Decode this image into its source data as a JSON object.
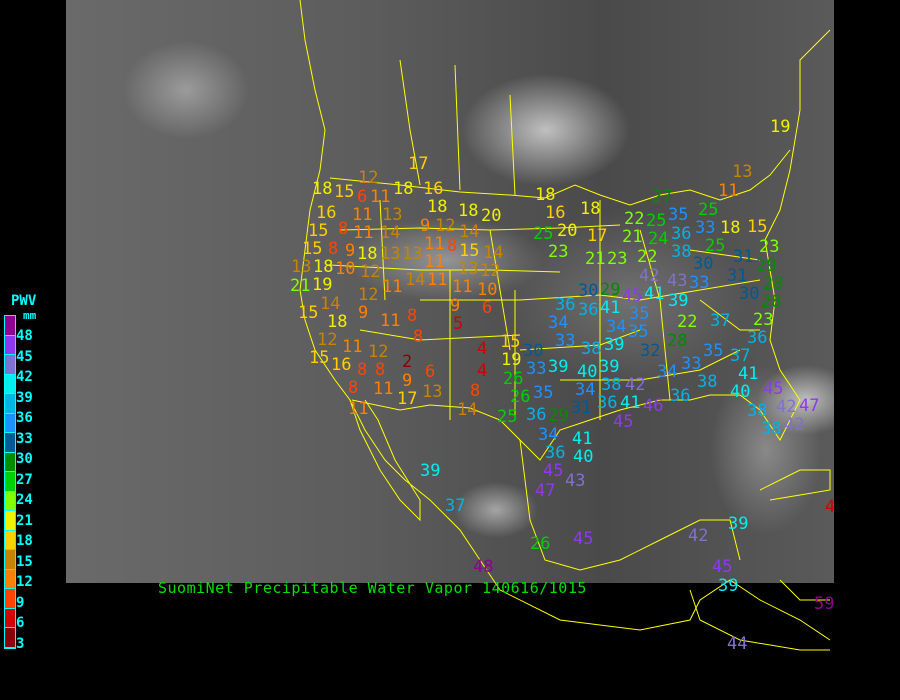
{
  "title": "SuomiNet Precipitable Water Vapor 140616/1015",
  "legend": {
    "title": "PWV",
    "unit": "mm",
    "ticks": [
      "48",
      "45",
      "42",
      "39",
      "36",
      "33",
      "30",
      "27",
      "24",
      "21",
      "18",
      "15",
      "12",
      "9",
      "6",
      "3"
    ],
    "thresholds": [
      3,
      6,
      9,
      12,
      15,
      18,
      21,
      24,
      27,
      30,
      33,
      36,
      39,
      42,
      45,
      48
    ],
    "colors": [
      "#8b0000",
      "#d40000",
      "#ff4400",
      "#ff8000",
      "#c88400",
      "#ffd000",
      "#f0f000",
      "#80ff00",
      "#00d000",
      "#008c00",
      "#005a96",
      "#1e90ff",
      "#00b4e6",
      "#00f0f0",
      "#8070d0",
      "#9038f0",
      "#900090"
    ]
  },
  "stations": [
    15,
    12,
    18,
    6,
    11,
    13,
    16,
    18,
    18,
    20,
    16,
    11,
    15,
    8,
    11,
    14,
    9,
    9,
    12,
    8,
    11,
    14,
    15,
    8,
    18,
    13,
    13,
    11,
    15,
    14,
    13,
    18,
    10,
    12,
    13,
    14,
    11,
    11,
    12,
    10,
    21,
    11,
    19,
    12,
    15,
    14,
    18,
    9,
    11,
    8,
    9,
    6,
    5,
    8,
    12,
    15,
    4,
    15,
    30,
    11,
    16,
    12,
    8,
    2,
    6,
    4,
    19,
    8,
    9,
    8,
    11,
    13,
    17,
    8,
    11,
    14,
    26,
    18,
    16,
    20,
    18,
    17,
    25,
    23,
    21,
    23,
    22,
    27,
    25,
    35,
    36,
    25,
    21,
    24,
    22,
    38,
    33,
    25,
    18,
    15,
    30,
    42,
    43,
    33,
    31,
    31,
    23,
    29,
    30,
    29,
    45,
    41,
    39,
    36,
    36,
    41,
    35,
    34,
    33,
    34,
    35,
    39,
    38,
    32,
    22,
    28,
    37,
    36,
    35,
    37,
    30,
    28,
    28,
    23,
    33,
    39,
    40,
    39,
    33,
    34,
    41,
    38,
    40,
    45,
    38,
    42,
    34,
    35,
    41,
    36,
    36,
    46,
    31,
    36,
    29,
    45,
    38,
    42,
    47,
    38,
    42,
    26,
    25,
    19,
    13,
    11,
    17,
    18,
    39,
    37,
    34,
    36,
    41,
    40,
    45,
    47,
    43,
    26,
    45,
    48,
    42,
    39,
    45,
    39,
    44,
    59,
    4
  ]
}
